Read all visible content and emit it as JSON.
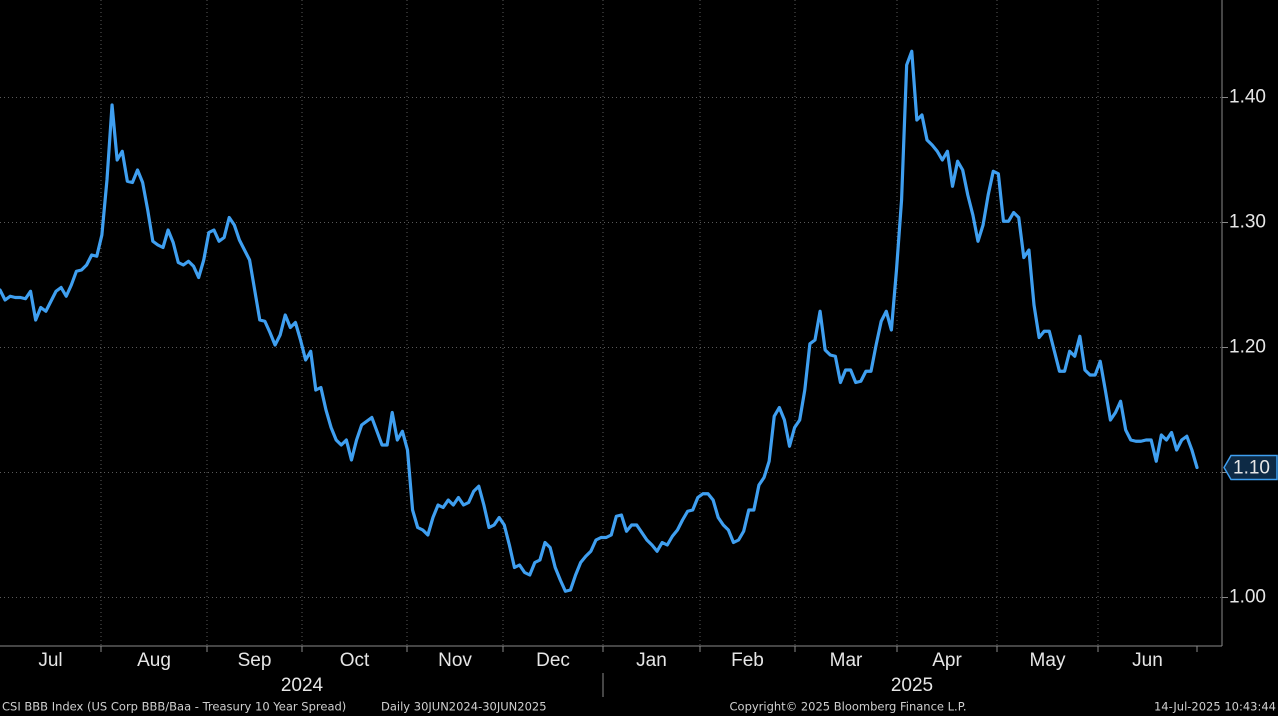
{
  "chart_data": {
    "type": "line",
    "title": "CSI BBB Index (US Corp BBB/Baa - Treasury 10 Year Spread)",
    "subtitle": "Daily 30JUN2024-30JUN2025",
    "copyright": "Copyright© 2025 Bloomberg Finance L.P.",
    "timestamp": "14-Jul-2025 10:43:44",
    "months": [
      "Jul",
      "Aug",
      "Sep",
      "Oct",
      "Nov",
      "Dec",
      "Jan",
      "Feb",
      "Mar",
      "Apr",
      "May",
      "Jun"
    ],
    "years": [
      "2024",
      "2025"
    ],
    "color": "#3f9ff0",
    "grid": true,
    "ylim": [
      0.962,
      1.478
    ],
    "yticks": [
      {
        "value": 1.0,
        "label": "1.00"
      },
      {
        "value": 1.1,
        "label": "1.10"
      },
      {
        "value": 1.2,
        "label": "1.20"
      },
      {
        "value": 1.3,
        "label": "1.30"
      },
      {
        "value": 1.4,
        "label": "1.40"
      }
    ],
    "last_value_label": "1.10",
    "values": [
      1.246,
      1.238,
      1.241,
      1.24,
      1.24,
      1.239,
      1.245,
      1.222,
      1.232,
      1.229,
      1.237,
      1.245,
      1.248,
      1.241,
      1.25,
      1.261,
      1.262,
      1.266,
      1.274,
      1.273,
      1.29,
      1.334,
      1.394,
      1.35,
      1.357,
      1.333,
      1.332,
      1.342,
      1.332,
      1.31,
      1.285,
      1.282,
      1.28,
      1.294,
      1.284,
      1.268,
      1.266,
      1.269,
      1.265,
      1.256,
      1.27,
      1.292,
      1.294,
      1.285,
      1.288,
      1.304,
      1.298,
      1.286,
      1.278,
      1.27,
      1.246,
      1.222,
      1.221,
      1.212,
      1.202,
      1.21,
      1.226,
      1.216,
      1.22,
      1.206,
      1.19,
      1.197,
      1.166,
      1.168,
      1.15,
      1.136,
      1.126,
      1.122,
      1.126,
      1.11,
      1.126,
      1.138,
      1.141,
      1.144,
      1.133,
      1.122,
      1.122,
      1.148,
      1.126,
      1.133,
      1.118,
      1.07,
      1.056,
      1.054,
      1.05,
      1.064,
      1.074,
      1.072,
      1.078,
      1.074,
      1.08,
      1.074,
      1.076,
      1.085,
      1.089,
      1.074,
      1.056,
      1.058,
      1.064,
      1.058,
      1.042,
      1.024,
      1.026,
      1.02,
      1.018,
      1.028,
      1.03,
      1.044,
      1.04,
      1.024,
      1.014,
      1.005,
      1.006,
      1.018,
      1.028,
      1.033,
      1.037,
      1.046,
      1.048,
      1.048,
      1.05,
      1.065,
      1.066,
      1.053,
      1.058,
      1.058,
      1.052,
      1.046,
      1.042,
      1.037,
      1.044,
      1.042,
      1.049,
      1.054,
      1.062,
      1.069,
      1.07,
      1.08,
      1.083,
      1.083,
      1.078,
      1.064,
      1.058,
      1.054,
      1.044,
      1.046,
      1.053,
      1.07,
      1.07,
      1.09,
      1.096,
      1.109,
      1.145,
      1.152,
      1.142,
      1.121,
      1.136,
      1.142,
      1.166,
      1.203,
      1.206,
      1.229,
      1.198,
      1.194,
      1.193,
      1.172,
      1.182,
      1.182,
      1.172,
      1.173,
      1.181,
      1.181,
      1.202,
      1.221,
      1.229,
      1.214,
      1.262,
      1.318,
      1.426,
      1.437,
      1.382,
      1.386,
      1.366,
      1.362,
      1.357,
      1.35,
      1.357,
      1.329,
      1.349,
      1.342,
      1.322,
      1.306,
      1.285,
      1.298,
      1.322,
      1.341,
      1.339,
      1.301,
      1.301,
      1.308,
      1.304,
      1.272,
      1.278,
      1.234,
      1.208,
      1.213,
      1.213,
      1.197,
      1.181,
      1.181,
      1.197,
      1.193,
      1.209,
      1.182,
      1.178,
      1.178,
      1.189,
      1.166,
      1.142,
      1.148,
      1.157,
      1.134,
      1.126,
      1.125,
      1.125,
      1.126,
      1.126,
      1.109,
      1.13,
      1.126,
      1.132,
      1.118,
      1.126,
      1.129,
      1.118,
      1.104
    ]
  }
}
